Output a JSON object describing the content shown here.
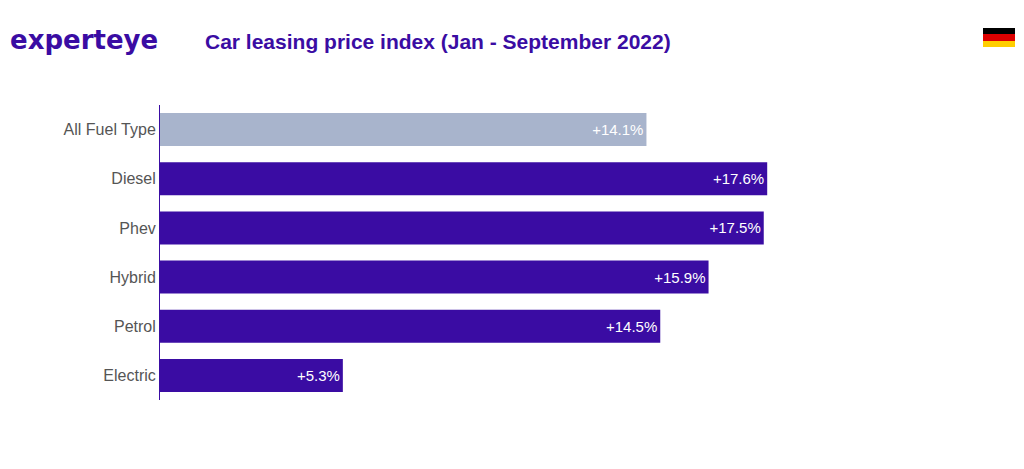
{
  "chart_data": {
    "type": "bar",
    "logo": "experteye",
    "title": "Car leasing price index (Jan - September 2022)",
    "orientation": "horizontal",
    "categories": [
      "All Fuel Type",
      "Diesel",
      "Phev",
      "Hybrid",
      "Petrol",
      "Electric"
    ],
    "values": [
      14.1,
      17.6,
      17.5,
      15.9,
      14.5,
      5.3
    ],
    "value_labels": [
      "+14.1%",
      "+17.6%",
      "+17.5%",
      "+15.9%",
      "+14.5%",
      "+5.3%"
    ],
    "colors": [
      "#a8b4cc",
      "#3a0ca3",
      "#3a0ca3",
      "#3a0ca3",
      "#3a0ca3",
      "#3a0ca3"
    ],
    "xlim": [
      0,
      24
    ],
    "data_labels": true,
    "tick_labels": "y",
    "grid": false
  }
}
